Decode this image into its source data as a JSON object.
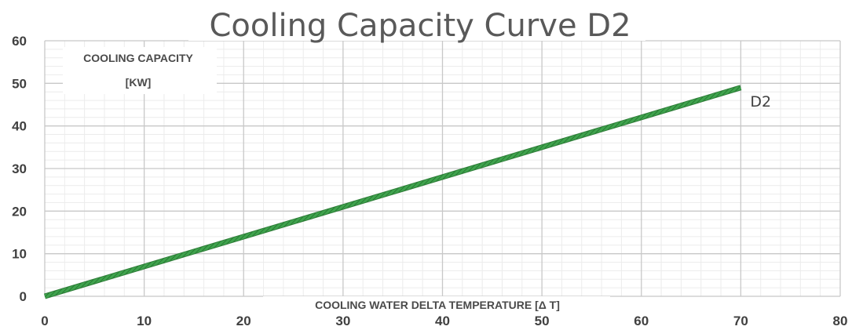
{
  "chart_data": {
    "type": "line",
    "title": "Cooling Capacity Curve D2",
    "ylabel_line1": "COOLING CAPACITY",
    "ylabel_line2": "[KW]",
    "xlabel": "COOLING WATER DELTA TEMPERATURE [Δ T]",
    "xlim": [
      0,
      80
    ],
    "ylim": [
      0,
      60
    ],
    "x_ticks": [
      0,
      10,
      20,
      30,
      40,
      50,
      60,
      70,
      80
    ],
    "y_ticks": [
      0,
      10,
      20,
      30,
      40,
      50,
      60
    ],
    "x_minor_step": 2,
    "y_minor_step": 2,
    "grid": true,
    "series": [
      {
        "name": "D2",
        "color": "#3fa34d",
        "x": [
          0,
          70
        ],
        "y": [
          0,
          49
        ]
      }
    ]
  }
}
